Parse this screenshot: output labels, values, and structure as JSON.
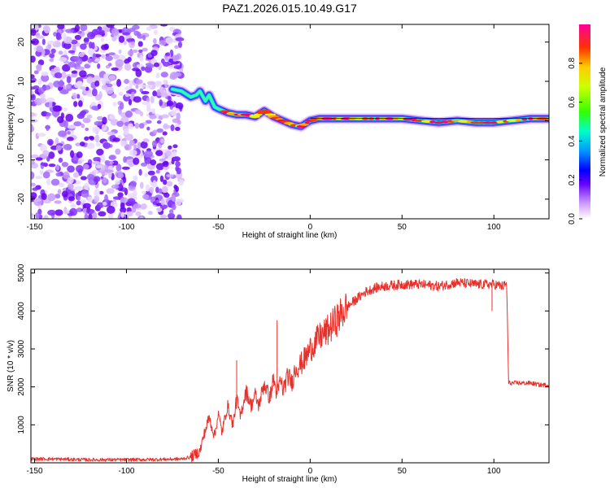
{
  "title": "PAZ1.2026.015.10.49.G17",
  "chart_data": [
    {
      "type": "heatmap",
      "xlabel": "Height of straight line (km)",
      "ylabel": "Frequency (Hz)",
      "xlim": [
        -152,
        130
      ],
      "ylim": [
        -25,
        24.5
      ],
      "xticks": [
        -150,
        -100,
        -50,
        0,
        50,
        100
      ],
      "yticks": [
        -20,
        -10,
        0,
        10,
        20
      ],
      "colorbar": {
        "label": "Normalized spectral amplitude",
        "range": [
          0,
          1
        ],
        "ticks": [
          0.0,
          0.2,
          0.4,
          0.6,
          0.8
        ],
        "tick_labels": [
          "0.0",
          "0.2",
          "0.4",
          "0.6",
          "0.8"
        ]
      },
      "noise_region_x": [
        -152,
        -70
      ],
      "ridge_x": [
        -75,
        -70,
        -65,
        -62,
        -60,
        -57,
        -55,
        -52,
        -50,
        -45,
        -40,
        -35,
        -30,
        -25,
        -20,
        -15,
        -10,
        -5,
        0,
        5,
        10,
        20,
        30,
        40,
        50,
        60,
        70,
        80,
        90,
        100,
        110,
        120,
        130
      ],
      "ridge_freq_hz": [
        8,
        7.5,
        6,
        6.5,
        7.5,
        5,
        6.5,
        3.5,
        3,
        2,
        1.5,
        1.5,
        1,
        2.5,
        1,
        0,
        -1,
        -1.5,
        0,
        0.5,
        0.5,
        0.5,
        0.5,
        0.5,
        0.5,
        0,
        -0.5,
        0,
        -0.5,
        -0.5,
        0,
        0.5,
        0.5
      ]
    },
    {
      "type": "line",
      "xlabel": "Height of straight line (km)",
      "ylabel": "SNR (10 * v/v)",
      "xlim": [
        -152,
        130
      ],
      "ylim": [
        0,
        5100
      ],
      "xticks": [
        -150,
        -100,
        -50,
        0,
        50,
        100
      ],
      "yticks": [
        1000,
        2000,
        3000,
        4000,
        5000
      ],
      "color": "#e8302b",
      "series": [
        {
          "name": "SNR",
          "x": [
            -152,
            -140,
            -120,
            -100,
            -80,
            -70,
            -65,
            -60,
            -58,
            -55,
            -52,
            -50,
            -48,
            -45,
            -42,
            -40,
            -38,
            -35,
            -32,
            -30,
            -28,
            -25,
            -22,
            -20,
            -18,
            -16,
            -15,
            -12,
            -10,
            -8,
            -5,
            -2,
            0,
            5,
            10,
            15,
            20,
            25,
            30,
            35,
            40,
            50,
            60,
            70,
            80,
            90,
            100,
            105,
            107,
            108,
            110,
            115,
            120,
            125,
            130
          ],
          "y": [
            100,
            100,
            80,
            80,
            90,
            100,
            150,
            300,
            700,
            1200,
            700,
            1300,
            800,
            1500,
            1000,
            1700,
            1200,
            1900,
            1500,
            1800,
            1500,
            2100,
            1700,
            2200,
            1800,
            2200,
            1900,
            2300,
            2100,
            2500,
            2600,
            2800,
            3000,
            3300,
            3500,
            3800,
            4100,
            4300,
            4500,
            4600,
            4650,
            4700,
            4700,
            4650,
            4750,
            4700,
            4700,
            4650,
            4700,
            2100,
            2100,
            2100,
            2100,
            2050,
            2050
          ]
        }
      ],
      "annotations": [
        {
          "x": -18,
          "y": 3750
        },
        {
          "x": -40,
          "y": 2700
        },
        {
          "x": 99,
          "y": 4000
        }
      ]
    }
  ]
}
